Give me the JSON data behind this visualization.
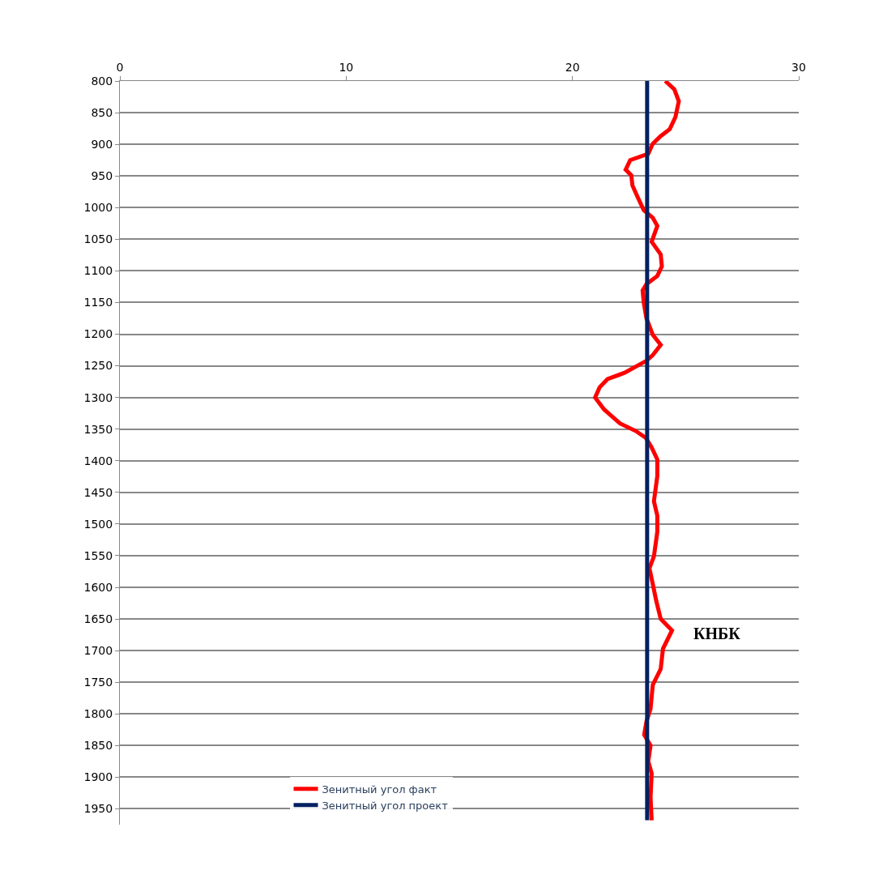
{
  "chart_data": {
    "type": "line",
    "xlim": [
      0,
      30
    ],
    "xticks": [
      0,
      10,
      20,
      30
    ],
    "ylim": [
      1975,
      800
    ],
    "yticks": [
      800,
      850,
      900,
      950,
      1000,
      1050,
      1100,
      1150,
      1200,
      1250,
      1300,
      1350,
      1400,
      1450,
      1500,
      1550,
      1600,
      1650,
      1700,
      1750,
      1800,
      1850,
      1900,
      1950
    ],
    "grid": "y",
    "legend": "bottom",
    "marker": "none",
    "line_style": "solid",
    "annotations": [
      "КНБК"
    ],
    "series": [
      {
        "name": "Зенитный угол факт",
        "color": "#ff0000",
        "x": [
          24.1,
          24.5,
          24.7,
          24.55,
          24.3,
          23.9,
          23.55,
          23.35,
          22.55,
          22.35,
          22.6,
          22.65,
          22.9,
          23.15,
          23.55,
          23.75,
          23.5,
          23.9,
          23.95,
          23.75,
          23.27,
          23.1,
          23.15,
          23.27,
          23.55,
          23.9,
          23.55,
          23.27,
          22.3,
          21.55,
          21.2,
          21.0,
          21.4,
          22.1,
          22.8,
          23.25,
          23.5,
          23.75,
          23.75,
          23.6,
          23.75,
          23.75,
          23.6,
          23.4,
          23.55,
          23.7,
          23.9,
          24.4,
          24.0,
          23.9,
          23.55,
          23.45,
          23.27,
          23.17,
          23.45,
          23.35,
          23.5,
          23.45,
          23.5
        ],
        "values": [
          800,
          813,
          832,
          857,
          876,
          887,
          899,
          915,
          925,
          940,
          949,
          965,
          985,
          1004,
          1016,
          1029,
          1054,
          1074,
          1093,
          1108,
          1121,
          1131,
          1150,
          1175,
          1201,
          1217,
          1233,
          1242,
          1261,
          1271,
          1284,
          1300,
          1319,
          1341,
          1353,
          1364,
          1379,
          1398,
          1424,
          1464,
          1487,
          1512,
          1551,
          1570,
          1595,
          1621,
          1650,
          1668,
          1697,
          1729,
          1754,
          1792,
          1812,
          1833,
          1850,
          1875,
          1894,
          1932,
          1968
        ]
      },
      {
        "name": "Зенитный угол проект",
        "color": "#002060",
        "x": [
          23.3,
          23.3
        ],
        "values": [
          800,
          1968
        ]
      }
    ]
  }
}
